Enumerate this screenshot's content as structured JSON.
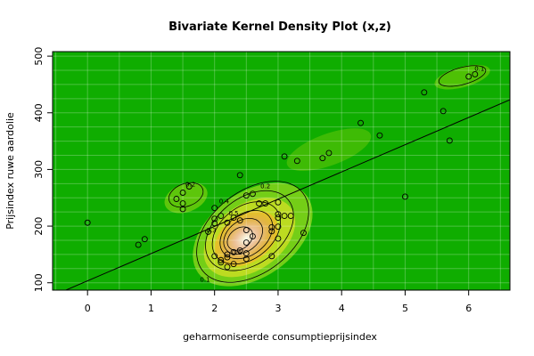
{
  "chart_data": {
    "type": "scatter",
    "title": "Bivariate Kernel Density Plot (x,z)",
    "xlabel": "geharmoniseerde consumptieprijsindex",
    "ylabel": "Prijsindex ruwe aardolie",
    "xlim": [
      -0.55,
      6.65
    ],
    "ylim": [
      87,
      508
    ],
    "x_ticks": [
      0,
      1,
      2,
      3,
      4,
      5,
      6
    ],
    "y_ticks": [
      100,
      200,
      300,
      400,
      500
    ],
    "grid": true,
    "background_color": "#0fad00",
    "regression_line": {
      "x1": -0.55,
      "y1": 77,
      "x2": 6.65,
      "y2": 423
    },
    "points": [
      {
        "x": 0.0,
        "y": 206
      },
      {
        "x": 0.8,
        "y": 167
      },
      {
        "x": 0.9,
        "y": 177
      },
      {
        "x": 1.4,
        "y": 248
      },
      {
        "x": 1.5,
        "y": 259
      },
      {
        "x": 1.5,
        "y": 240
      },
      {
        "x": 1.5,
        "y": 230
      },
      {
        "x": 1.6,
        "y": 270
      },
      {
        "x": 1.9,
        "y": 190
      },
      {
        "x": 2.0,
        "y": 232
      },
      {
        "x": 2.0,
        "y": 213
      },
      {
        "x": 2.0,
        "y": 205
      },
      {
        "x": 2.0,
        "y": 147
      },
      {
        "x": 2.1,
        "y": 218
      },
      {
        "x": 2.1,
        "y": 140
      },
      {
        "x": 2.1,
        "y": 136
      },
      {
        "x": 2.2,
        "y": 206
      },
      {
        "x": 2.2,
        "y": 150
      },
      {
        "x": 2.2,
        "y": 145
      },
      {
        "x": 2.2,
        "y": 128
      },
      {
        "x": 2.3,
        "y": 215
      },
      {
        "x": 2.3,
        "y": 154
      },
      {
        "x": 2.3,
        "y": 133
      },
      {
        "x": 2.4,
        "y": 290
      },
      {
        "x": 2.4,
        "y": 210
      },
      {
        "x": 2.4,
        "y": 157
      },
      {
        "x": 2.5,
        "y": 254
      },
      {
        "x": 2.5,
        "y": 193
      },
      {
        "x": 2.5,
        "y": 171
      },
      {
        "x": 2.5,
        "y": 152
      },
      {
        "x": 2.5,
        "y": 142
      },
      {
        "x": 2.6,
        "y": 257
      },
      {
        "x": 2.6,
        "y": 182
      },
      {
        "x": 2.7,
        "y": 240
      },
      {
        "x": 2.8,
        "y": 240
      },
      {
        "x": 2.9,
        "y": 198
      },
      {
        "x": 2.9,
        "y": 191
      },
      {
        "x": 2.9,
        "y": 147
      },
      {
        "x": 3.0,
        "y": 242
      },
      {
        "x": 3.0,
        "y": 221
      },
      {
        "x": 3.0,
        "y": 215
      },
      {
        "x": 3.0,
        "y": 199
      },
      {
        "x": 3.0,
        "y": 178
      },
      {
        "x": 3.1,
        "y": 323
      },
      {
        "x": 3.1,
        "y": 218
      },
      {
        "x": 3.2,
        "y": 218
      },
      {
        "x": 3.3,
        "y": 315
      },
      {
        "x": 3.4,
        "y": 188
      },
      {
        "x": 3.7,
        "y": 320
      },
      {
        "x": 3.8,
        "y": 329
      },
      {
        "x": 4.3,
        "y": 382
      },
      {
        "x": 4.6,
        "y": 360
      },
      {
        "x": 5.0,
        "y": 252
      },
      {
        "x": 5.3,
        "y": 436
      },
      {
        "x": 5.6,
        "y": 403
      },
      {
        "x": 5.7,
        "y": 351
      },
      {
        "x": 6.0,
        "y": 464
      },
      {
        "x": 6.1,
        "y": 468
      }
    ],
    "contour_levels": [
      "0.1",
      "0.2",
      "0.3",
      "0.4",
      "0.5",
      "0.6",
      "0.7"
    ]
  }
}
